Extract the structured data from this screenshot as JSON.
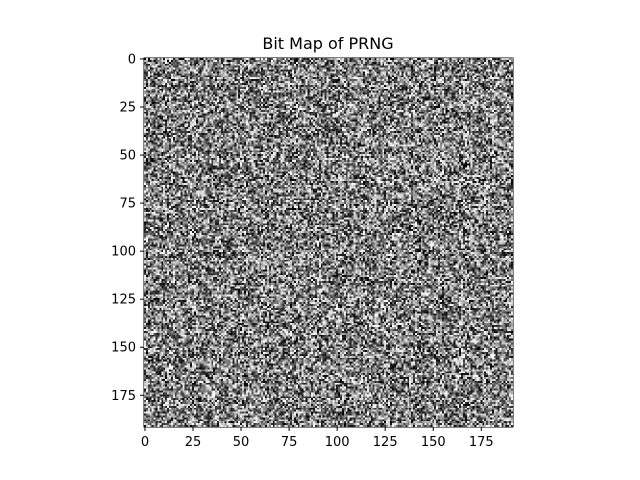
{
  "chart_data": {
    "type": "heatmap",
    "title": "Bit Map of PRNG",
    "xlabel": "",
    "ylabel": "",
    "colormap": "gray",
    "data_shape": [
      192,
      192
    ],
    "value_range": [
      0,
      1
    ],
    "xlim": [
      -0.5,
      191.5
    ],
    "ylim": [
      191.5,
      -0.5
    ],
    "x_ticks": [
      0,
      25,
      50,
      75,
      100,
      125,
      150,
      175
    ],
    "y_ticks": [
      0,
      25,
      50,
      75,
      100,
      125,
      150,
      175
    ],
    "x_tick_labels": [
      "0",
      "25",
      "50",
      "75",
      "100",
      "125",
      "150",
      "175"
    ],
    "y_tick_labels": [
      "0",
      "25",
      "50",
      "75",
      "100",
      "125",
      "150",
      "175"
    ],
    "grid": false,
    "legend": "none"
  }
}
